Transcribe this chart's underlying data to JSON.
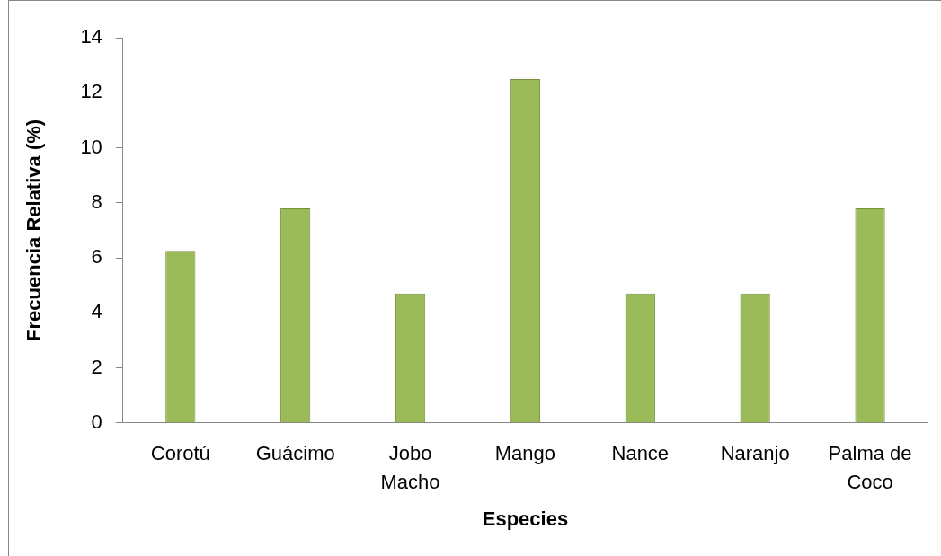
{
  "chart_data": {
    "type": "bar",
    "xlabel": "Especies",
    "ylabel": "Frecuencia Relativa (%)",
    "categories": [
      "Corotú",
      "Guácimo",
      "Jobo Macho",
      "Mango",
      "Nance",
      "Naranjo",
      "Palma de Coco"
    ],
    "values": [
      6.25,
      7.8,
      4.7,
      12.5,
      4.7,
      4.7,
      7.8
    ],
    "color": "#9bbb59",
    "ylim": [
      0,
      14
    ],
    "yticks": [
      0,
      2,
      4,
      6,
      8,
      10,
      12,
      14
    ]
  }
}
